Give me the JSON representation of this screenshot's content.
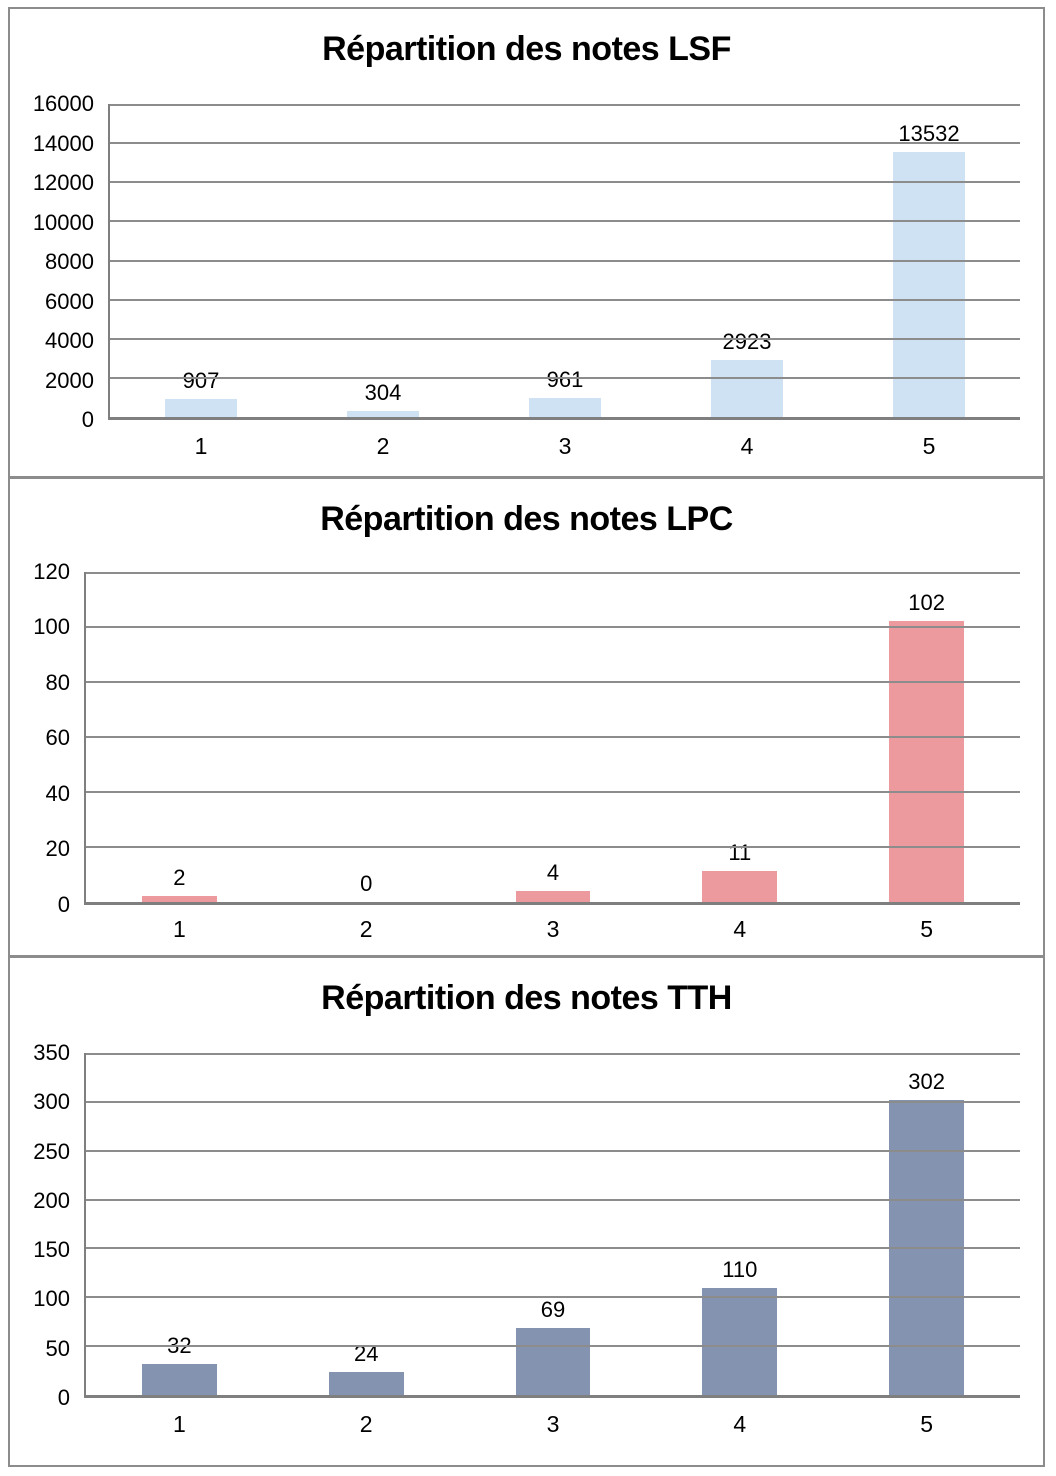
{
  "styles": {
    "gridline_color": "#8c8c8c",
    "axis_color": "#7f7f7f",
    "frame_color": "#8c8c8c",
    "text_color": "#000000"
  },
  "chart_data": [
    {
      "type": "bar",
      "title": "Répartition des notes LSF",
      "categories": [
        "1",
        "2",
        "3",
        "4",
        "5"
      ],
      "values": [
        907,
        304,
        961,
        2923,
        13532
      ],
      "data_labels": [
        "907",
        "304",
        "961",
        "2923",
        "13532"
      ],
      "xlabel": "",
      "ylabel": "",
      "ylim": [
        0,
        16000
      ],
      "ytick_step": 2000,
      "ytick_labels": [
        "0",
        "2000",
        "4000",
        "6000",
        "8000",
        "10000",
        "12000",
        "14000",
        "16000"
      ],
      "bar_color": "#cfe2f4",
      "grid": true,
      "legend": "none"
    },
    {
      "type": "bar",
      "title": "Répartition des notes LPC",
      "categories": [
        "1",
        "2",
        "3",
        "4",
        "5"
      ],
      "values": [
        2,
        0,
        4,
        11,
        102
      ],
      "data_labels": [
        "2",
        "0",
        "4",
        "11",
        "102"
      ],
      "xlabel": "",
      "ylabel": "",
      "ylim": [
        0,
        120
      ],
      "ytick_step": 20,
      "ytick_labels": [
        "0",
        "20",
        "40",
        "60",
        "80",
        "100",
        "120"
      ],
      "bar_color": "#ec9a9d",
      "grid": true,
      "legend": "none"
    },
    {
      "type": "bar",
      "title": "Répartition des notes TTH",
      "categories": [
        "1",
        "2",
        "3",
        "4",
        "5"
      ],
      "values": [
        32,
        24,
        69,
        110,
        302
      ],
      "data_labels": [
        "32",
        "24",
        "69",
        "110",
        "302"
      ],
      "xlabel": "",
      "ylabel": "",
      "ylim": [
        0,
        350
      ],
      "ytick_step": 50,
      "ytick_labels": [
        "0",
        "50",
        "100",
        "150",
        "200",
        "250",
        "300",
        "350"
      ],
      "bar_color": "#8494b0",
      "grid": true,
      "legend": "none"
    }
  ]
}
